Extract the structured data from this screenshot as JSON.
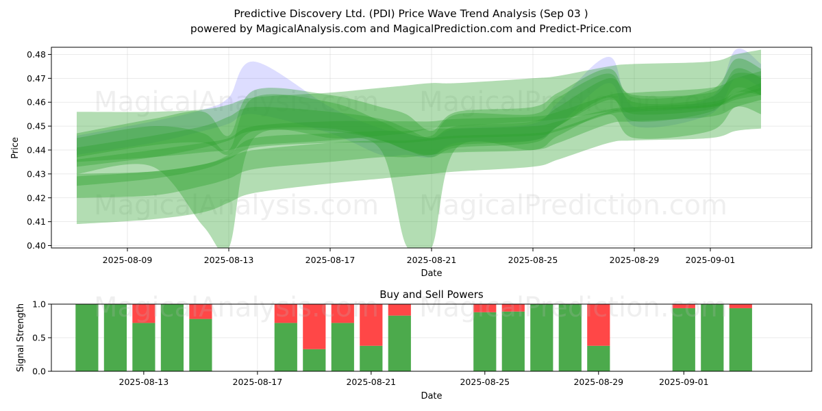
{
  "figure": {
    "title_line1": "Predictive Discovery Ltd. (PDI) Price Wave Trend Analysis (Sep 03 )",
    "title_line2": "powered by MagicalAnalysis.com and MagicalPrediction.com and Predict-Price.com",
    "watermarks": [
      "MagicalAnalysis.com",
      "MagicalPrediction.com"
    ]
  },
  "chart_data": [
    {
      "type": "area",
      "title": "",
      "xlabel": "Date",
      "ylabel": "Price",
      "ylim": [
        0.399,
        0.483
      ],
      "xlim": [
        "2025-08-06",
        "2025-09-05"
      ],
      "x_ticks": [
        "2025-08-09",
        "2025-08-13",
        "2025-08-17",
        "2025-08-21",
        "2025-08-25",
        "2025-08-29",
        "2025-09-01"
      ],
      "y_ticks": [
        0.4,
        0.41,
        0.42,
        0.43,
        0.44,
        0.45,
        0.46,
        0.47,
        0.48
      ],
      "grid": true,
      "colors": {
        "band": "#2ca02c",
        "price_band": "#6666ff"
      },
      "x": [
        "2025-08-07",
        "2025-08-10",
        "2025-08-12",
        "2025-08-13",
        "2025-08-14",
        "2025-08-17",
        "2025-08-19",
        "2025-08-20",
        "2025-08-21",
        "2025-08-22",
        "2025-08-25",
        "2025-08-26",
        "2025-08-28",
        "2025-08-29",
        "2025-09-01",
        "2025-09-02",
        "2025-09-03"
      ],
      "price_band": {
        "upper": [
          0.446,
          0.452,
          0.457,
          0.462,
          0.477,
          0.458,
          0.449,
          0.447,
          0.445,
          0.449,
          0.451,
          0.46,
          0.479,
          0.458,
          0.462,
          0.482,
          0.476
        ],
        "lower": [
          0.438,
          0.443,
          0.448,
          0.451,
          0.455,
          0.447,
          0.438,
          0.438,
          0.437,
          0.443,
          0.444,
          0.45,
          0.468,
          0.45,
          0.455,
          0.47,
          0.466
        ]
      },
      "bands": [
        {
          "upper": [
            0.456,
            0.456,
            0.457,
            0.459,
            0.462,
            0.464,
            0.466,
            0.467,
            0.468,
            0.468,
            0.47,
            0.471,
            0.475,
            0.476,
            0.477,
            0.48,
            0.482
          ],
          "lower": [
            0.435,
            0.437,
            0.439,
            0.44,
            0.442,
            0.444,
            0.446,
            0.447,
            0.449,
            0.45,
            0.452,
            0.453,
            0.456,
            0.457,
            0.458,
            0.461,
            0.463
          ]
        },
        {
          "upper": [
            0.429,
            0.431,
            0.434,
            0.438,
            0.445,
            0.447,
            0.448,
            0.448,
            0.449,
            0.449,
            0.45,
            0.452,
            0.457,
            0.458,
            0.46,
            0.464,
            0.468
          ],
          "lower": [
            0.409,
            0.411,
            0.414,
            0.418,
            0.422,
            0.426,
            0.428,
            0.429,
            0.43,
            0.431,
            0.433,
            0.436,
            0.443,
            0.444,
            0.445,
            0.448,
            0.449
          ]
        },
        {
          "upper": [
            0.447,
            0.453,
            0.456,
            0.446,
            0.465,
            0.463,
            0.458,
            0.455,
            0.448,
            0.456,
            0.458,
            0.464,
            0.474,
            0.462,
            0.465,
            0.478,
            0.474
          ],
          "lower": [
            0.437,
            0.442,
            0.443,
            0.438,
            0.448,
            0.449,
            0.444,
            0.44,
            0.437,
            0.441,
            0.443,
            0.45,
            0.462,
            0.452,
            0.456,
            0.466,
            0.463
          ]
        },
        {
          "upper": [
            0.43,
            0.431,
            0.434,
            0.437,
            0.44,
            0.443,
            0.444,
            0.444,
            0.445,
            0.446,
            0.447,
            0.449,
            0.456,
            0.457,
            0.459,
            0.463,
            0.466
          ],
          "lower": [
            0.42,
            0.421,
            0.425,
            0.428,
            0.432,
            0.435,
            0.437,
            0.437,
            0.438,
            0.439,
            0.44,
            0.443,
            0.451,
            0.452,
            0.454,
            0.458,
            0.461
          ]
        },
        {
          "upper": [
            0.445,
            0.45,
            0.447,
            0.44,
            0.462,
            0.46,
            0.452,
            0.447,
            0.446,
            0.455,
            0.455,
            0.462,
            0.472,
            0.46,
            0.462,
            0.474,
            0.47
          ],
          "lower": [
            0.43,
            0.433,
            0.408,
            0.399,
            0.445,
            0.445,
            0.44,
            0.4,
            0.399,
            0.441,
            0.44,
            0.446,
            0.455,
            0.445,
            0.448,
            0.458,
            0.455
          ]
        },
        {
          "upper": [
            0.436,
            0.44,
            0.443,
            0.445,
            0.45,
            0.452,
            0.452,
            0.452,
            0.452,
            0.453,
            0.454,
            0.456,
            0.463,
            0.464,
            0.466,
            0.47,
            0.473
          ],
          "lower": [
            0.425,
            0.428,
            0.432,
            0.436,
            0.441,
            0.443,
            0.443,
            0.443,
            0.444,
            0.445,
            0.446,
            0.448,
            0.455,
            0.456,
            0.458,
            0.462,
            0.465
          ]
        },
        {
          "upper": [
            0.441,
            0.446,
            0.45,
            0.454,
            0.458,
            0.456,
            0.453,
            0.449,
            0.445,
            0.45,
            0.452,
            0.458,
            0.47,
            0.463,
            0.464,
            0.472,
            0.471
          ],
          "lower": [
            0.433,
            0.437,
            0.441,
            0.444,
            0.448,
            0.448,
            0.444,
            0.44,
            0.438,
            0.442,
            0.444,
            0.45,
            0.461,
            0.455,
            0.457,
            0.464,
            0.463
          ]
        }
      ]
    },
    {
      "type": "bar",
      "title": "Buy and Sell Powers",
      "xlabel": "Date",
      "ylabel": "Signal Strength",
      "ylim": [
        0,
        1
      ],
      "xlim": [
        "2025-08-09T18:00",
        "2025-09-05T12:00"
      ],
      "x_ticks": [
        "2025-08-13",
        "2025-08-17",
        "2025-08-21",
        "2025-08-25",
        "2025-08-29",
        "2025-09-01"
      ],
      "y_ticks": [
        "0.0",
        "0.5",
        "1.0"
      ],
      "grid": true,
      "stacked": true,
      "colors": {
        "buy": "#4caa4c",
        "sell": "#ff4747"
      },
      "dates": [
        "2025-08-11",
        "2025-08-12",
        "2025-08-13",
        "2025-08-14",
        "2025-08-15",
        "2025-08-18",
        "2025-08-19",
        "2025-08-20",
        "2025-08-21",
        "2025-08-22",
        "2025-08-25",
        "2025-08-26",
        "2025-08-27",
        "2025-08-28",
        "2025-08-29",
        "2025-09-01",
        "2025-09-02",
        "2025-09-03"
      ],
      "buy": [
        1.0,
        1.0,
        0.72,
        1.0,
        0.78,
        0.72,
        0.33,
        0.72,
        0.38,
        0.83,
        0.88,
        0.89,
        1.0,
        1.0,
        0.38,
        0.94,
        1.0,
        0.94
      ],
      "sell": [
        0.0,
        0.0,
        0.28,
        0.0,
        0.22,
        0.28,
        0.67,
        0.28,
        0.62,
        0.17,
        0.12,
        0.11,
        0.0,
        0.0,
        0.62,
        0.06,
        0.0,
        0.06
      ]
    }
  ]
}
